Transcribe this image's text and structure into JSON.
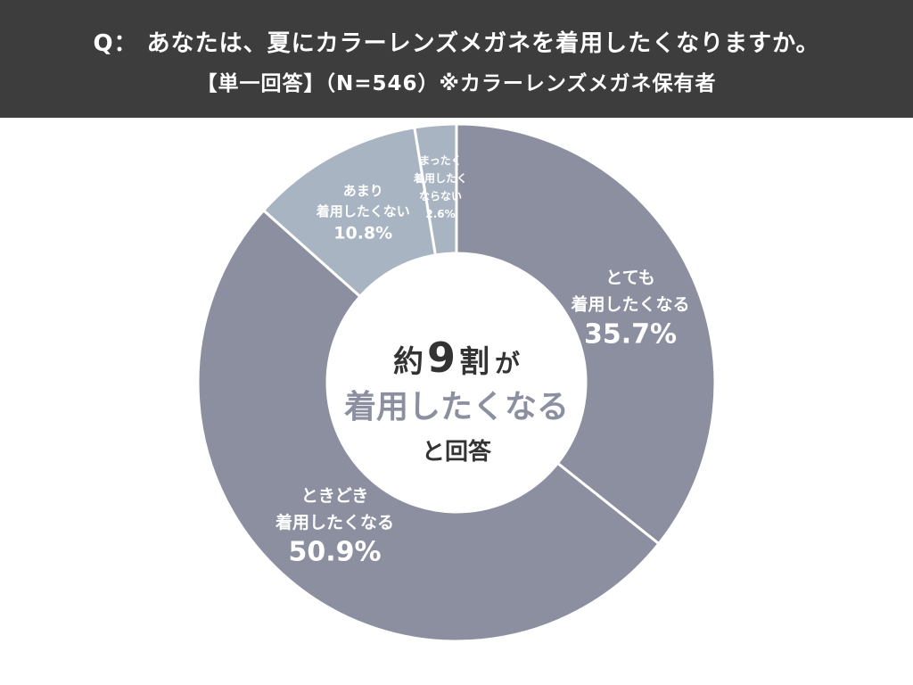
{
  "header": {
    "question": "Q： あなたは、夏にカラーレンズメガネを着用したくなりますか。",
    "subtitle": "【単一回答】（N=546）※カラーレンズメガネ保有者"
  },
  "center": {
    "line1_prefix": "約",
    "line1_number": "9",
    "line1_suffix": "割",
    "line1_particle": "が",
    "line2": "着用したくなる",
    "line3": "と回答"
  },
  "colors": {
    "header_bg": "#3d3d3d",
    "dark_segment": "#8b8fa0",
    "light_segment": "#a9b4c2"
  },
  "chart_data": {
    "type": "pie",
    "subtype": "donut",
    "categories": [
      "とても着用したくなる",
      "ときどき着用したくなる",
      "あまり着用したくない",
      "まったく着用したくならない"
    ],
    "values": [
      35.7,
      50.9,
      10.8,
      2.6
    ],
    "unit": "%",
    "labels": [
      {
        "lines": [
          "とても",
          "着用したくなる"
        ],
        "value": "35.7%"
      },
      {
        "lines": [
          "ときどき",
          "着用したくなる"
        ],
        "value": "50.9%"
      },
      {
        "lines": [
          "あまり",
          "着用したくない"
        ],
        "value": "10.8%"
      },
      {
        "lines": [
          "まったく",
          "着用したく",
          "ならない"
        ],
        "value": "2.6%"
      }
    ],
    "segment_colors": [
      "#8b8fa0",
      "#8b8fa0",
      "#a9b4c2",
      "#a9b4c2"
    ]
  }
}
